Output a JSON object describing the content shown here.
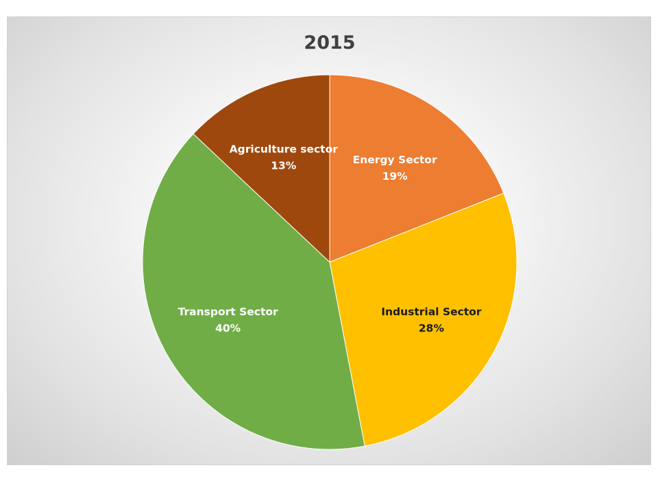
{
  "chart_data": {
    "type": "pie",
    "title": "2015",
    "slices": [
      {
        "name": "Energy Sector",
        "value": 19,
        "label": "19%",
        "color": "#ED7D31",
        "label_color": "#FFFFFF"
      },
      {
        "name": "Industrial Sector",
        "value": 28,
        "label": "28%",
        "color": "#FFC000",
        "label_color": "#1A1A1A"
      },
      {
        "name": "Transport Sector",
        "value": 40,
        "label": "40%",
        "color": "#70AD47",
        "label_color": "#FFFFFF"
      },
      {
        "name": "Agriculture sector",
        "value": 13,
        "label": "13%",
        "color": "#9E480E",
        "label_color": "#FFFFFF"
      }
    ]
  }
}
